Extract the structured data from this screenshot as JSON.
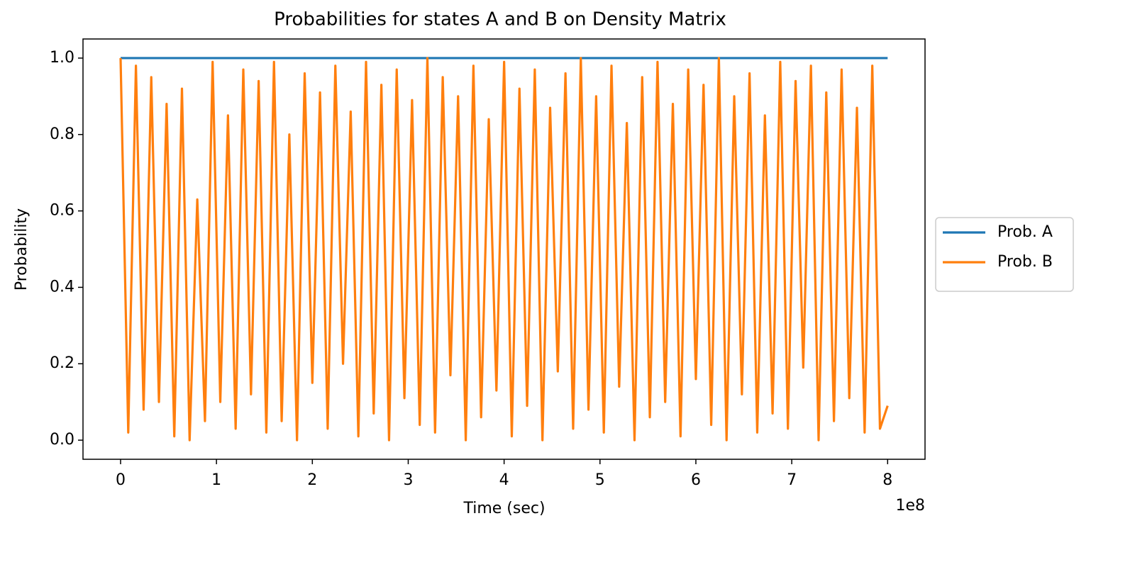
{
  "chart_data": {
    "type": "line",
    "title": "Probabilities for states A and B on Density Matrix",
    "x_label": "Time (sec)",
    "y_label": "Probability",
    "x_offset_label": "1e8",
    "x": [
      0,
      8000000,
      16000000,
      24000000,
      32000000,
      40000000,
      48000000,
      56000000,
      64000000,
      72000000,
      80000000,
      88000000,
      96000000,
      104000000,
      112000000,
      120000000,
      128000000,
      136000000,
      144000000,
      152000000,
      160000000,
      168000000,
      176000000,
      184000000,
      192000000,
      200000000,
      208000000,
      216000000,
      224000000,
      232000000,
      240000000,
      248000000,
      256000000,
      264000000,
      272000000,
      280000000,
      288000000,
      296000000,
      304000000,
      312000000,
      320000000,
      328000000,
      336000000,
      344000000,
      352000000,
      360000000,
      368000000,
      376000000,
      384000000,
      392000000,
      400000000,
      408000000,
      416000000,
      424000000,
      432000000,
      440000000,
      448000000,
      456000000,
      464000000,
      472000000,
      480000000,
      488000000,
      496000000,
      504000000,
      512000000,
      520000000,
      528000000,
      536000000,
      544000000,
      552000000,
      560000000,
      568000000,
      576000000,
      584000000,
      592000000,
      600000000,
      608000000,
      616000000,
      624000000,
      632000000,
      640000000,
      648000000,
      656000000,
      664000000,
      672000000,
      680000000,
      688000000,
      696000000,
      704000000,
      712000000,
      720000000,
      728000000,
      736000000,
      744000000,
      752000000,
      760000000,
      768000000,
      776000000,
      784000000,
      792000000,
      800000000
    ],
    "series": [
      {
        "name": "Prob. A",
        "color": "#1f77b4",
        "values": [
          1.0,
          1.0,
          1.0,
          1.0,
          1.0,
          1.0,
          1.0,
          1.0,
          1.0,
          1.0,
          1.0,
          1.0,
          1.0,
          1.0,
          1.0,
          1.0,
          1.0,
          1.0,
          1.0,
          1.0,
          1.0,
          1.0,
          1.0,
          1.0,
          1.0,
          1.0,
          1.0,
          1.0,
          1.0,
          1.0,
          1.0,
          1.0,
          1.0,
          1.0,
          1.0,
          1.0,
          1.0,
          1.0,
          1.0,
          1.0,
          1.0,
          1.0,
          1.0,
          1.0,
          1.0,
          1.0,
          1.0,
          1.0,
          1.0,
          1.0,
          1.0,
          1.0,
          1.0,
          1.0,
          1.0,
          1.0,
          1.0,
          1.0,
          1.0,
          1.0,
          1.0,
          1.0,
          1.0,
          1.0,
          1.0,
          1.0,
          1.0,
          1.0,
          1.0,
          1.0,
          1.0,
          1.0,
          1.0,
          1.0,
          1.0,
          1.0,
          1.0,
          1.0,
          1.0,
          1.0,
          1.0,
          1.0,
          1.0,
          1.0,
          1.0,
          1.0,
          1.0,
          1.0,
          1.0,
          1.0,
          1.0,
          1.0,
          1.0,
          1.0,
          1.0,
          1.0,
          1.0,
          1.0,
          1.0,
          1.0,
          1.0
        ]
      },
      {
        "name": "Prob. B",
        "color": "#ff7f0e",
        "values": [
          1.0,
          0.02,
          0.98,
          0.08,
          0.95,
          0.1,
          0.88,
          0.01,
          0.92,
          0.0,
          0.63,
          0.05,
          0.99,
          0.1,
          0.85,
          0.03,
          0.97,
          0.12,
          0.94,
          0.02,
          0.99,
          0.05,
          0.8,
          0.0,
          0.96,
          0.15,
          0.91,
          0.03,
          0.98,
          0.2,
          0.86,
          0.01,
          0.99,
          0.07,
          0.93,
          0.0,
          0.97,
          0.11,
          0.89,
          0.04,
          1.0,
          0.02,
          0.95,
          0.17,
          0.9,
          0.0,
          0.98,
          0.06,
          0.84,
          0.13,
          0.99,
          0.01,
          0.92,
          0.09,
          0.97,
          0.0,
          0.87,
          0.18,
          0.96,
          0.03,
          1.0,
          0.08,
          0.9,
          0.02,
          0.98,
          0.14,
          0.83,
          0.0,
          0.95,
          0.06,
          0.99,
          0.1,
          0.88,
          0.01,
          0.97,
          0.16,
          0.93,
          0.04,
          1.0,
          0.0,
          0.9,
          0.12,
          0.96,
          0.02,
          0.85,
          0.07,
          0.99,
          0.03,
          0.94,
          0.19,
          0.98,
          0.0,
          0.91,
          0.05,
          0.97,
          0.11,
          0.87,
          0.02,
          0.98,
          0.03,
          0.09
        ]
      }
    ],
    "xlim": [
      -39200000,
      839000000
    ],
    "ylim": [
      -0.05,
      1.05
    ],
    "xticks": [
      {
        "value": 0,
        "label": "0"
      },
      {
        "value": 100000000,
        "label": "1"
      },
      {
        "value": 200000000,
        "label": "2"
      },
      {
        "value": 300000000,
        "label": "3"
      },
      {
        "value": 400000000,
        "label": "4"
      },
      {
        "value": 500000000,
        "label": "5"
      },
      {
        "value": 600000000,
        "label": "6"
      },
      {
        "value": 700000000,
        "label": "7"
      },
      {
        "value": 800000000,
        "label": "8"
      }
    ],
    "yticks": [
      {
        "value": 0,
        "label": "0.0"
      },
      {
        "value": 0.2,
        "label": "0.2"
      },
      {
        "value": 0.4,
        "label": "0.4"
      },
      {
        "value": 0.6,
        "label": "0.6"
      },
      {
        "value": 0.8,
        "label": "0.8"
      },
      {
        "value": 1.0,
        "label": "1.0"
      }
    ],
    "grid": false,
    "legend": "outside right"
  }
}
